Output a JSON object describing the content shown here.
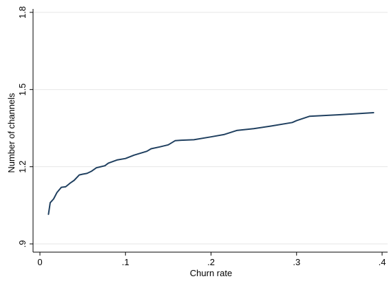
{
  "chart_data": {
    "type": "line",
    "title": "",
    "xlabel": "Churn rate",
    "ylabel": "Number of channels",
    "xlim": [
      0,
      0.4
    ],
    "ylim": [
      0.9,
      1.8
    ],
    "xticks": [
      {
        "value": 0,
        "label": "0"
      },
      {
        "value": 0.1,
        "label": ".1"
      },
      {
        "value": 0.2,
        "label": ".2"
      },
      {
        "value": 0.3,
        "label": ".3"
      },
      {
        "value": 0.4,
        "label": ".4"
      }
    ],
    "yticks": [
      {
        "value": 0.9,
        "label": ".9"
      },
      {
        "value": 1.2,
        "label": "1.2"
      },
      {
        "value": 1.5,
        "label": "1.5"
      },
      {
        "value": 1.8,
        "label": "1.8"
      }
    ],
    "grid": "horizontal",
    "legend": "none",
    "colors": {
      "line": "#1f3f5f",
      "grid": "#e6e6e6",
      "axis": "#000000"
    },
    "series": [
      {
        "points": [
          [
            0.01,
            1.015
          ],
          [
            0.012,
            1.06
          ],
          [
            0.016,
            1.075
          ],
          [
            0.02,
            1.1
          ],
          [
            0.025,
            1.12
          ],
          [
            0.03,
            1.122
          ],
          [
            0.036,
            1.138
          ],
          [
            0.04,
            1.147
          ],
          [
            0.046,
            1.168
          ],
          [
            0.05,
            1.171
          ],
          [
            0.055,
            1.174
          ],
          [
            0.06,
            1.182
          ],
          [
            0.066,
            1.196
          ],
          [
            0.07,
            1.199
          ],
          [
            0.076,
            1.204
          ],
          [
            0.08,
            1.214
          ],
          [
            0.09,
            1.226
          ],
          [
            0.1,
            1.232
          ],
          [
            0.11,
            1.245
          ],
          [
            0.125,
            1.26
          ],
          [
            0.13,
            1.27
          ],
          [
            0.14,
            1.277
          ],
          [
            0.15,
            1.285
          ],
          [
            0.158,
            1.301
          ],
          [
            0.165,
            1.303
          ],
          [
            0.18,
            1.305
          ],
          [
            0.2,
            1.316
          ],
          [
            0.215,
            1.325
          ],
          [
            0.23,
            1.341
          ],
          [
            0.25,
            1.348
          ],
          [
            0.27,
            1.358
          ],
          [
            0.295,
            1.372
          ],
          [
            0.3,
            1.379
          ],
          [
            0.315,
            1.396
          ],
          [
            0.35,
            1.402
          ],
          [
            0.39,
            1.41
          ]
        ]
      }
    ]
  }
}
